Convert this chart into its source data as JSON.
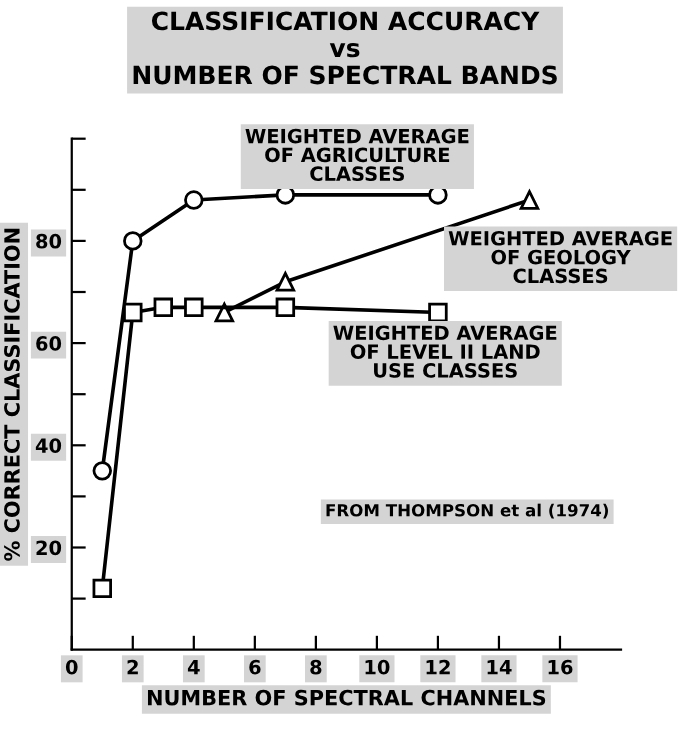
{
  "chart_data": {
    "type": "line",
    "title": "CLASSIFICATION ACCURACY\nvs\nNUMBER OF SPECTRAL BANDS",
    "xlabel": "NUMBER OF SPECTRAL CHANNELS",
    "ylabel": "% CORRECT CLASSIFICATION",
    "series": [
      {
        "name": "WEIGHTED AVERAGE\nOF AGRICULTURE\nCLASSES",
        "color": "#000000",
        "marker": "circle",
        "x": [
          1,
          2,
          4,
          7,
          12
        ],
        "values": [
          35,
          80,
          88,
          89,
          89
        ]
      },
      {
        "name": "WEIGHTED AVERAGE\nOF GEOLOGY\nCLASSES",
        "color": "#000000",
        "marker": "triangle",
        "x": [
          5,
          7,
          15
        ],
        "values": [
          66,
          72,
          88
        ]
      },
      {
        "name": "WEIGHTED AVERAGE\nOF LEVEL II LAND\nUSE CLASSES",
        "color": "#000000",
        "marker": "square",
        "x": [
          1,
          2,
          3,
          4,
          7,
          12
        ],
        "values": [
          12,
          66,
          67,
          67,
          67,
          66
        ]
      }
    ],
    "xlim": [
      0,
      18
    ],
    "ylim": [
      0,
      100
    ],
    "xticks": [
      0,
      2,
      4,
      6,
      8,
      10,
      12,
      14,
      16
    ],
    "yticks": [
      {
        "value": 10,
        "label": null
      },
      20,
      {
        "value": 30,
        "label": null
      },
      40,
      {
        "value": 50,
        "label": null
      },
      60,
      {
        "value": 70,
        "label": null
      },
      80,
      {
        "value": 90,
        "label": null
      },
      {
        "value": 100,
        "label": null
      }
    ],
    "annotations": [
      "FROM THOMPSON et al (1974)"
    ],
    "grid": false,
    "legend": false
  }
}
